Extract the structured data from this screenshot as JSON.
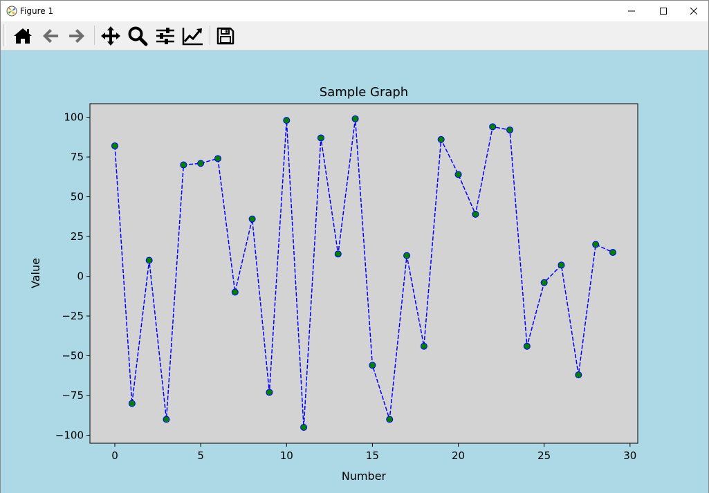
{
  "window": {
    "title": "Figure 1",
    "controls": [
      "minimize-icon",
      "maximize-icon",
      "close-icon"
    ]
  },
  "toolbar": {
    "buttons": [
      {
        "icon": "home-icon",
        "label": "Home"
      },
      {
        "icon": "back-arrow-icon",
        "label": "Back"
      },
      {
        "icon": "forward-arrow-icon",
        "label": "Forward"
      },
      {
        "icon": "pan-icon",
        "label": "Pan"
      },
      {
        "icon": "zoom-icon",
        "label": "Zoom"
      },
      {
        "icon": "subplots-icon",
        "label": "Subplots"
      },
      {
        "icon": "customize-icon",
        "label": "Customize"
      },
      {
        "icon": "save-icon",
        "label": "Save"
      }
    ]
  },
  "colors": {
    "figure_background": "#add8e6",
    "axes_background": "#d3d3d3",
    "line": "#0000ff",
    "marker": "#008000"
  },
  "chart_data": {
    "type": "line",
    "title": "Sample Graph",
    "xlabel": "Number",
    "ylabel": "Value",
    "line_style": "dashed",
    "marker": "circle",
    "grid": false,
    "xlim": [
      -1.45,
      30.45
    ],
    "ylim": [
      -105,
      108.5
    ],
    "xticks": [
      0,
      5,
      10,
      15,
      20,
      25,
      30
    ],
    "yticks": [
      -100,
      -75,
      -50,
      -25,
      0,
      25,
      50,
      75,
      100
    ],
    "x": [
      0,
      1,
      2,
      3,
      4,
      5,
      6,
      7,
      8,
      9,
      10,
      11,
      12,
      13,
      14,
      15,
      16,
      17,
      18,
      19,
      20,
      21,
      22,
      23,
      24,
      25,
      26,
      27,
      28,
      29
    ],
    "y": [
      82,
      -80,
      10,
      -90,
      70,
      71,
      74,
      -10,
      36,
      -73,
      98,
      -95,
      87,
      14,
      99,
      -56,
      -90,
      13,
      -44,
      86,
      64,
      39,
      94,
      92,
      -44,
      -4,
      7,
      -62,
      20,
      15
    ]
  }
}
